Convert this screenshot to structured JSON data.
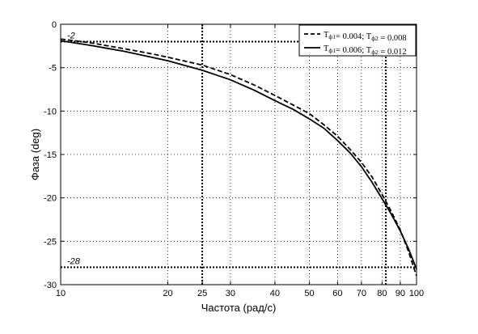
{
  "chart_data": {
    "type": "line",
    "xlabel": "Частота (рад/с)",
    "ylabel": "Фаза (deg)",
    "x_scale": "log",
    "xlim": [
      10,
      100
    ],
    "ylim": [
      -30,
      0
    ],
    "grid": true,
    "legend_position": "top-right",
    "x_ticks": [
      {
        "value": 10,
        "label": "10"
      },
      {
        "value": 20,
        "label": "20"
      },
      {
        "value": 25,
        "label": "25"
      },
      {
        "value": 30,
        "label": "30"
      },
      {
        "value": 40,
        "label": "40"
      },
      {
        "value": 50,
        "label": "50"
      },
      {
        "value": 60,
        "label": "60"
      },
      {
        "value": 70,
        "label": "70"
      },
      {
        "value": 80,
        "label": "80"
      },
      {
        "value": 90,
        "label": "90"
      },
      {
        "value": 100,
        "label": "100"
      }
    ],
    "y_ticks": [
      {
        "value": 0,
        "label": "0"
      },
      {
        "value": -5,
        "label": "-5"
      },
      {
        "value": -10,
        "label": "-10"
      },
      {
        "value": -15,
        "label": "-15"
      },
      {
        "value": -20,
        "label": "-20"
      },
      {
        "value": -25,
        "label": "-25"
      },
      {
        "value": -30,
        "label": "-30"
      }
    ],
    "reference_lines": [
      {
        "axis": "y",
        "value": -2,
        "label": "-2"
      },
      {
        "axis": "y",
        "value": -28,
        "label": "-28"
      },
      {
        "axis": "x",
        "value": 25,
        "label": ""
      },
      {
        "axis": "x",
        "value": 82,
        "label": ""
      }
    ],
    "series": [
      {
        "legend": {
          "t1_label": "T",
          "t1_sub": "ф1",
          "t1_value": "= 0.004; ",
          "t2_label": "T",
          "t2_sub": "ф2",
          "t2_value": " = 0.008"
        },
        "style": "dashed",
        "color": "#000000",
        "x": [
          10,
          12,
          15,
          18,
          20,
          25,
          30,
          35,
          40,
          45,
          50,
          55,
          60,
          65,
          70,
          75,
          80,
          85,
          90,
          95,
          100
        ],
        "y": [
          -1.7,
          -2.1,
          -2.8,
          -3.4,
          -3.8,
          -4.7,
          -5.8,
          -7.0,
          -8.2,
          -9.3,
          -10.3,
          -11.6,
          -12.9,
          -14.4,
          -15.9,
          -17.6,
          -19.6,
          -21.6,
          -23.7,
          -26.2,
          -29.0
        ]
      },
      {
        "legend": {
          "t1_label": "T",
          "t1_sub": "ф1",
          "t1_value": "= 0.006; ",
          "t2_label": "T",
          "t2_sub": "ф2",
          "t2_value": " = 0.012"
        },
        "style": "solid",
        "color": "#000000",
        "x": [
          10,
          12,
          15,
          18,
          20,
          25,
          30,
          35,
          40,
          45,
          50,
          55,
          60,
          65,
          70,
          75,
          80,
          85,
          90,
          95,
          100
        ],
        "y": [
          -1.9,
          -2.4,
          -3.1,
          -3.8,
          -4.2,
          -5.3,
          -6.4,
          -7.6,
          -8.8,
          -9.8,
          -10.9,
          -12.0,
          -13.4,
          -14.8,
          -16.4,
          -18.2,
          -20.1,
          -21.9,
          -23.8,
          -25.9,
          -28.2
        ]
      }
    ]
  }
}
